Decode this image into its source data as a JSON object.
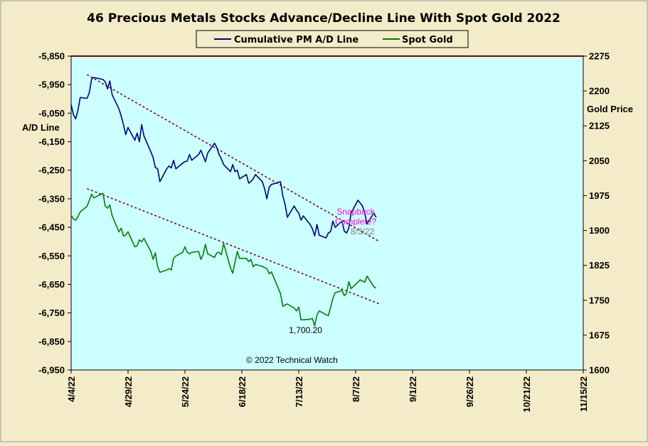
{
  "chart_data": {
    "type": "line",
    "title": "46 Precious Metals Stocks Advance/Decline Line With Spot Gold 2022",
    "ylabel_left": "A/D Line",
    "ylabel_right": "Gold Price",
    "ylim_left": [
      -6950,
      -5850
    ],
    "ylim_right": [
      1600,
      2275
    ],
    "y_ticks_left": [
      "-5,850",
      "-5,950",
      "-6,050",
      "-6,150",
      "-6,250",
      "-6,350",
      "-6,450",
      "-6,550",
      "-6,650",
      "-6,750",
      "-6,850",
      "-6,950"
    ],
    "y_ticks_right": [
      "2275",
      "2200",
      "2125",
      "2050",
      "1975",
      "1900",
      "1825",
      "1750",
      "1675",
      "1600"
    ],
    "x_ticks": [
      "4/4/22",
      "4/29/22",
      "5/24/22",
      "6/18/22",
      "7/13/22",
      "8/7/22",
      "9/1/22",
      "9/26/22",
      "10/21/22",
      "11/15/22"
    ],
    "legend_placement": "top-center",
    "colors": {
      "background": "#f4ecc8",
      "plot_area": "#ccffff",
      "ad_line": "#000080",
      "gold": "#008000",
      "trendline": "#800020",
      "annotation_pink": "#ff00cc",
      "annotation_gray": "#808080"
    },
    "series": [
      {
        "name": "Cumulative PM A/D Line",
        "axis": "left",
        "points": [
          [
            "2022-04-04",
            -6020
          ],
          [
            "2022-04-05",
            -6055
          ],
          [
            "2022-04-06",
            -6070
          ],
          [
            "2022-04-07",
            -6040
          ],
          [
            "2022-04-08",
            -5995
          ],
          [
            "2022-04-11",
            -5998
          ],
          [
            "2022-04-12",
            -5978
          ],
          [
            "2022-04-13",
            -5930
          ],
          [
            "2022-04-14",
            -5925
          ],
          [
            "2022-04-18",
            -5932
          ],
          [
            "2022-04-19",
            -5940
          ],
          [
            "2022-04-20",
            -5965
          ],
          [
            "2022-04-21",
            -5937
          ],
          [
            "2022-04-22",
            -5985
          ],
          [
            "2022-04-25",
            -6035
          ],
          [
            "2022-04-26",
            -6060
          ],
          [
            "2022-04-27",
            -6090
          ],
          [
            "2022-04-28",
            -6125
          ],
          [
            "2022-04-29",
            -6100
          ],
          [
            "2022-05-02",
            -6145
          ],
          [
            "2022-05-03",
            -6120
          ],
          [
            "2022-05-04",
            -6150
          ],
          [
            "2022-05-05",
            -6090
          ],
          [
            "2022-05-06",
            -6130
          ],
          [
            "2022-05-09",
            -6185
          ],
          [
            "2022-05-10",
            -6205
          ],
          [
            "2022-05-11",
            -6240
          ],
          [
            "2022-05-12",
            -6245
          ],
          [
            "2022-05-13",
            -6290
          ],
          [
            "2022-05-16",
            -6245
          ],
          [
            "2022-05-17",
            -6235
          ],
          [
            "2022-05-18",
            -6242
          ],
          [
            "2022-05-19",
            -6215
          ],
          [
            "2022-05-20",
            -6245
          ],
          [
            "2022-05-23",
            -6225
          ],
          [
            "2022-05-24",
            -6220
          ],
          [
            "2022-05-25",
            -6218
          ],
          [
            "2022-05-26",
            -6195
          ],
          [
            "2022-05-27",
            -6215
          ],
          [
            "2022-05-30",
            -6195
          ],
          [
            "2022-05-31",
            -6180
          ],
          [
            "2022-06-01",
            -6200
          ],
          [
            "2022-06-02",
            -6220
          ],
          [
            "2022-06-03",
            -6190
          ],
          [
            "2022-06-06",
            -6155
          ],
          [
            "2022-06-07",
            -6170
          ],
          [
            "2022-06-08",
            -6195
          ],
          [
            "2022-06-09",
            -6210
          ],
          [
            "2022-06-10",
            -6230
          ],
          [
            "2022-06-13",
            -6255
          ],
          [
            "2022-06-14",
            -6230
          ],
          [
            "2022-06-15",
            -6255
          ],
          [
            "2022-06-16",
            -6250
          ],
          [
            "2022-06-17",
            -6280
          ],
          [
            "2022-06-20",
            -6265
          ],
          [
            "2022-06-21",
            -6295
          ],
          [
            "2022-06-22",
            -6290
          ],
          [
            "2022-06-23",
            -6280
          ],
          [
            "2022-06-24",
            -6265
          ],
          [
            "2022-06-27",
            -6290
          ],
          [
            "2022-06-28",
            -6315
          ],
          [
            "2022-06-29",
            -6350
          ],
          [
            "2022-06-30",
            -6310
          ],
          [
            "2022-07-01",
            -6300
          ],
          [
            "2022-07-05",
            -6290
          ],
          [
            "2022-07-06",
            -6340
          ],
          [
            "2022-07-07",
            -6370
          ],
          [
            "2022-07-08",
            -6415
          ],
          [
            "2022-07-11",
            -6375
          ],
          [
            "2022-07-12",
            -6390
          ],
          [
            "2022-07-13",
            -6400
          ],
          [
            "2022-07-14",
            -6425
          ],
          [
            "2022-07-15",
            -6410
          ],
          [
            "2022-07-18",
            -6440
          ],
          [
            "2022-07-19",
            -6455
          ],
          [
            "2022-07-20",
            -6480
          ],
          [
            "2022-07-21",
            -6440
          ],
          [
            "2022-07-22",
            -6478
          ],
          [
            "2022-07-25",
            -6487
          ],
          [
            "2022-07-26",
            -6470
          ],
          [
            "2022-07-27",
            -6465
          ],
          [
            "2022-07-28",
            -6428
          ],
          [
            "2022-07-29",
            -6450
          ],
          [
            "2022-08-01",
            -6428
          ],
          [
            "2022-08-02",
            -6463
          ],
          [
            "2022-08-03",
            -6470
          ],
          [
            "2022-08-04",
            -6452
          ],
          [
            "2022-08-05",
            -6400
          ],
          [
            "2022-08-08",
            -6355
          ],
          [
            "2022-08-09",
            -6365
          ],
          [
            "2022-08-10",
            -6375
          ],
          [
            "2022-08-11",
            -6400
          ],
          [
            "2022-08-12",
            -6438
          ],
          [
            "2022-08-15",
            -6400
          ],
          [
            "2022-08-16",
            -6415
          ]
        ]
      },
      {
        "name": "Spot Gold",
        "axis": "right",
        "points": [
          [
            "2022-04-04",
            1933
          ],
          [
            "2022-04-05",
            1925
          ],
          [
            "2022-04-06",
            1922
          ],
          [
            "2022-04-07",
            1930
          ],
          [
            "2022-04-08",
            1940
          ],
          [
            "2022-04-11",
            1952
          ],
          [
            "2022-04-12",
            1965
          ],
          [
            "2022-04-13",
            1978
          ],
          [
            "2022-04-14",
            1970
          ],
          [
            "2022-04-18",
            1980
          ],
          [
            "2022-04-19",
            1952
          ],
          [
            "2022-04-20",
            1948
          ],
          [
            "2022-04-21",
            1955
          ],
          [
            "2022-04-22",
            1932
          ],
          [
            "2022-04-25",
            1897
          ],
          [
            "2022-04-26",
            1905
          ],
          [
            "2022-04-27",
            1888
          ],
          [
            "2022-04-28",
            1890
          ],
          [
            "2022-04-29",
            1897
          ],
          [
            "2022-05-02",
            1865
          ],
          [
            "2022-05-03",
            1867
          ],
          [
            "2022-05-04",
            1880
          ],
          [
            "2022-05-05",
            1876
          ],
          [
            "2022-05-06",
            1883
          ],
          [
            "2022-05-09",
            1855
          ],
          [
            "2022-05-10",
            1838
          ],
          [
            "2022-05-11",
            1852
          ],
          [
            "2022-05-12",
            1822
          ],
          [
            "2022-05-13",
            1810
          ],
          [
            "2022-05-16",
            1815
          ],
          [
            "2022-05-17",
            1818
          ],
          [
            "2022-05-18",
            1815
          ],
          [
            "2022-05-19",
            1840
          ],
          [
            "2022-05-20",
            1845
          ],
          [
            "2022-05-23",
            1853
          ],
          [
            "2022-05-24",
            1865
          ],
          [
            "2022-05-25",
            1853
          ],
          [
            "2022-05-26",
            1850
          ],
          [
            "2022-05-27",
            1853
          ],
          [
            "2022-05-30",
            1855
          ],
          [
            "2022-05-31",
            1838
          ],
          [
            "2022-06-01",
            1848
          ],
          [
            "2022-06-02",
            1870
          ],
          [
            "2022-06-03",
            1850
          ],
          [
            "2022-06-06",
            1842
          ],
          [
            "2022-06-07",
            1852
          ],
          [
            "2022-06-08",
            1853
          ],
          [
            "2022-06-09",
            1848
          ],
          [
            "2022-06-10",
            1872
          ],
          [
            "2022-06-13",
            1820
          ],
          [
            "2022-06-14",
            1808
          ],
          [
            "2022-06-15",
            1832
          ],
          [
            "2022-06-16",
            1855
          ],
          [
            "2022-06-17",
            1840
          ],
          [
            "2022-06-20",
            1840
          ],
          [
            "2022-06-21",
            1833
          ],
          [
            "2022-06-22",
            1838
          ],
          [
            "2022-06-23",
            1822
          ],
          [
            "2022-06-24",
            1827
          ],
          [
            "2022-06-27",
            1823
          ],
          [
            "2022-06-28",
            1820
          ],
          [
            "2022-06-29",
            1818
          ],
          [
            "2022-06-30",
            1807
          ],
          [
            "2022-07-01",
            1811
          ],
          [
            "2022-07-05",
            1764
          ],
          [
            "2022-07-06",
            1737
          ],
          [
            "2022-07-07",
            1740
          ],
          [
            "2022-07-08",
            1742
          ],
          [
            "2022-07-11",
            1733
          ],
          [
            "2022-07-12",
            1727
          ],
          [
            "2022-07-13",
            1735
          ],
          [
            "2022-07-14",
            1708
          ],
          [
            "2022-07-15",
            1708
          ],
          [
            "2022-07-18",
            1709
          ],
          [
            "2022-07-19",
            1711
          ],
          [
            "2022-07-20",
            1695
          ],
          [
            "2022-07-21",
            1718
          ],
          [
            "2022-07-22",
            1727
          ],
          [
            "2022-07-25",
            1719
          ],
          [
            "2022-07-26",
            1717
          ],
          [
            "2022-07-27",
            1735
          ],
          [
            "2022-07-28",
            1754
          ],
          [
            "2022-07-29",
            1766
          ],
          [
            "2022-08-01",
            1771
          ],
          [
            "2022-08-02",
            1760
          ],
          [
            "2022-08-03",
            1765
          ],
          [
            "2022-08-04",
            1790
          ],
          [
            "2022-08-05",
            1775
          ],
          [
            "2022-08-08",
            1789
          ],
          [
            "2022-08-09",
            1794
          ],
          [
            "2022-08-10",
            1791
          ],
          [
            "2022-08-11",
            1789
          ],
          [
            "2022-08-12",
            1802
          ],
          [
            "2022-08-15",
            1779
          ],
          [
            "2022-08-16",
            1776
          ]
        ]
      }
    ],
    "trendlines": [
      {
        "axis": "left",
        "from": [
          "2022-04-11",
          -5915
        ],
        "to": [
          "2022-08-17",
          -6498
        ]
      },
      {
        "axis": "right",
        "from": [
          "2022-04-11",
          1990
        ],
        "to": [
          "2022-08-18",
          1741
        ]
      }
    ],
    "annotations": [
      {
        "lines": [
          "Snapback",
          "Complete?"
        ],
        "color": "#ff00cc",
        "at": [
          "2022-08-07",
          -6405
        ]
      },
      {
        "lines": [
          "8/3/22"
        ],
        "color": "#808080",
        "at": [
          "2022-08-10",
          -6475
        ]
      },
      {
        "lines": [
          "1,700.20"
        ],
        "color": "#000000",
        "at": [
          "2022-07-16",
          -6820
        ]
      },
      {
        "lines": [
          "© 2022 Technical Watch"
        ],
        "color": "#000000",
        "at": [
          "2022-07-10",
          -6925
        ]
      }
    ]
  }
}
